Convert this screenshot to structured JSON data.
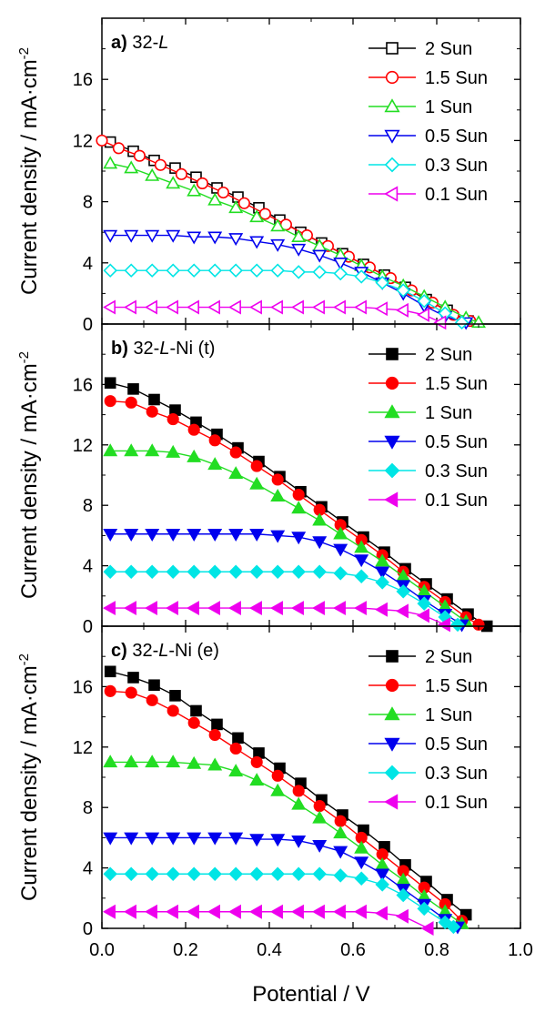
{
  "figure": {
    "xlabel": "Potential / V",
    "ylabel_main": "Current density / mA·cm",
    "ylabel_sup": "-2"
  },
  "colors": {
    "2 Sun": "#000000",
    "1.5 Sun": "#ff0000",
    "1 Sun": "#22dd22",
    "0.5 Sun": "#0000ee",
    "0.3 Sun": "#00e5e5",
    "0.1 Sun": "#ee00ee"
  },
  "chart_data": [
    {
      "type": "line",
      "panel_letter": "a)",
      "panel_name": "32-",
      "panel_italic": "L",
      "panel_suffix": "",
      "marker_fill": "open",
      "xlim": [
        0.0,
        1.0
      ],
      "ylim": [
        0,
        20
      ],
      "xticks": [
        "0.0",
        "0.2",
        "0.4",
        "0.6",
        "0.8",
        "1.0"
      ],
      "yticks": [
        "0",
        "4",
        "8",
        "12",
        "16"
      ],
      "legend_position": "top-right",
      "series": [
        {
          "name": "2 Sun",
          "marker": "square",
          "x": [
            0.02,
            0.075,
            0.125,
            0.175,
            0.225,
            0.275,
            0.325,
            0.375,
            0.425,
            0.475,
            0.525,
            0.575,
            0.625,
            0.675,
            0.725,
            0.775,
            0.825,
            0.875
          ],
          "y": [
            11.9,
            11.3,
            10.7,
            10.2,
            9.6,
            8.9,
            8.3,
            7.6,
            6.8,
            6.0,
            5.3,
            4.6,
            3.9,
            3.2,
            2.4,
            1.6,
            0.9,
            0.2
          ]
        },
        {
          "name": "1.5 Sun",
          "marker": "circle",
          "x": [
            0.0,
            0.04,
            0.09,
            0.14,
            0.19,
            0.24,
            0.29,
            0.34,
            0.39,
            0.44,
            0.49,
            0.54,
            0.59,
            0.64,
            0.69,
            0.74,
            0.79,
            0.84,
            0.88
          ],
          "y": [
            12.0,
            11.5,
            11.0,
            10.4,
            9.8,
            9.2,
            8.6,
            7.9,
            7.2,
            6.5,
            5.8,
            5.1,
            4.4,
            3.7,
            3.0,
            2.2,
            1.4,
            0.6,
            0.2
          ]
        },
        {
          "name": "1 Sun",
          "marker": "triangle-up",
          "x": [
            0.02,
            0.07,
            0.12,
            0.17,
            0.22,
            0.27,
            0.32,
            0.37,
            0.42,
            0.47,
            0.52,
            0.57,
            0.62,
            0.67,
            0.72,
            0.77,
            0.82,
            0.87,
            0.9
          ],
          "y": [
            10.5,
            10.2,
            9.7,
            9.2,
            8.7,
            8.1,
            7.6,
            7.0,
            6.4,
            5.7,
            5.1,
            4.5,
            3.8,
            3.1,
            2.5,
            1.8,
            1.1,
            0.4,
            0.1
          ]
        },
        {
          "name": "0.5 Sun",
          "marker": "triangle-down",
          "x": [
            0.02,
            0.07,
            0.12,
            0.17,
            0.22,
            0.27,
            0.32,
            0.37,
            0.42,
            0.47,
            0.52,
            0.57,
            0.62,
            0.67,
            0.72,
            0.77,
            0.82,
            0.87
          ],
          "y": [
            5.8,
            5.8,
            5.8,
            5.8,
            5.7,
            5.7,
            5.6,
            5.4,
            5.2,
            4.9,
            4.5,
            4.0,
            3.4,
            2.7,
            2.0,
            1.2,
            0.5,
            0.1
          ]
        },
        {
          "name": "0.3 Sun",
          "marker": "diamond",
          "x": [
            0.02,
            0.07,
            0.12,
            0.17,
            0.22,
            0.27,
            0.32,
            0.37,
            0.42,
            0.47,
            0.52,
            0.57,
            0.62,
            0.67,
            0.72,
            0.77,
            0.82,
            0.86
          ],
          "y": [
            3.5,
            3.5,
            3.5,
            3.5,
            3.5,
            3.5,
            3.5,
            3.5,
            3.5,
            3.4,
            3.4,
            3.3,
            3.1,
            2.7,
            2.2,
            1.5,
            0.7,
            0.1
          ]
        },
        {
          "name": "0.1 Sun",
          "marker": "triangle-left",
          "x": [
            0.02,
            0.07,
            0.12,
            0.17,
            0.22,
            0.27,
            0.32,
            0.37,
            0.42,
            0.47,
            0.52,
            0.57,
            0.62,
            0.67,
            0.72,
            0.77,
            0.81
          ],
          "y": [
            1.1,
            1.1,
            1.1,
            1.1,
            1.1,
            1.1,
            1.1,
            1.1,
            1.1,
            1.1,
            1.1,
            1.1,
            1.1,
            1.0,
            0.9,
            0.6,
            0.1
          ]
        }
      ]
    },
    {
      "type": "line",
      "panel_letter": "b)",
      "panel_name": "32-",
      "panel_italic": "L",
      "panel_suffix": "-Ni (t)",
      "marker_fill": "filled",
      "xlim": [
        0.0,
        1.0
      ],
      "ylim": [
        0,
        20
      ],
      "xticks": [
        "0.0",
        "0.2",
        "0.4",
        "0.6",
        "0.8",
        "1.0"
      ],
      "yticks": [
        "0",
        "4",
        "8",
        "12",
        "16"
      ],
      "legend_position": "top-right",
      "series": [
        {
          "name": "2 Sun",
          "marker": "square",
          "x": [
            0.02,
            0.075,
            0.125,
            0.175,
            0.225,
            0.275,
            0.325,
            0.375,
            0.425,
            0.475,
            0.525,
            0.575,
            0.625,
            0.675,
            0.725,
            0.775,
            0.825,
            0.875,
            0.92
          ],
          "y": [
            16.1,
            15.7,
            15.0,
            14.3,
            13.5,
            12.7,
            11.8,
            10.9,
            9.9,
            8.9,
            7.9,
            6.9,
            5.9,
            4.9,
            3.8,
            2.8,
            1.8,
            0.8,
            0.0
          ]
        },
        {
          "name": "1.5 Sun",
          "marker": "circle",
          "x": [
            0.02,
            0.07,
            0.12,
            0.17,
            0.22,
            0.27,
            0.32,
            0.37,
            0.42,
            0.47,
            0.52,
            0.57,
            0.62,
            0.67,
            0.72,
            0.77,
            0.82,
            0.87,
            0.9
          ],
          "y": [
            14.9,
            14.8,
            14.2,
            13.7,
            13.0,
            12.3,
            11.5,
            10.6,
            9.7,
            8.7,
            7.7,
            6.7,
            5.7,
            4.7,
            3.6,
            2.6,
            1.6,
            0.6,
            0.1
          ]
        },
        {
          "name": "1 Sun",
          "marker": "triangle-up",
          "x": [
            0.02,
            0.07,
            0.12,
            0.17,
            0.22,
            0.27,
            0.32,
            0.37,
            0.42,
            0.47,
            0.52,
            0.57,
            0.62,
            0.67,
            0.72,
            0.77,
            0.82,
            0.87
          ],
          "y": [
            11.6,
            11.6,
            11.6,
            11.5,
            11.2,
            10.7,
            10.1,
            9.4,
            8.6,
            7.8,
            7.0,
            6.1,
            5.2,
            4.3,
            3.3,
            2.3,
            1.3,
            0.3
          ]
        },
        {
          "name": "0.5 Sun",
          "marker": "triangle-down",
          "x": [
            0.02,
            0.07,
            0.12,
            0.17,
            0.22,
            0.27,
            0.32,
            0.37,
            0.42,
            0.47,
            0.52,
            0.57,
            0.62,
            0.67,
            0.72,
            0.77,
            0.82,
            0.86
          ],
          "y": [
            6.1,
            6.1,
            6.1,
            6.1,
            6.1,
            6.1,
            6.1,
            6.1,
            6.0,
            5.9,
            5.6,
            5.1,
            4.4,
            3.6,
            2.7,
            1.7,
            0.8,
            0.1
          ]
        },
        {
          "name": "0.3 Sun",
          "marker": "diamond",
          "x": [
            0.02,
            0.07,
            0.12,
            0.17,
            0.22,
            0.27,
            0.32,
            0.37,
            0.42,
            0.47,
            0.52,
            0.57,
            0.62,
            0.67,
            0.72,
            0.77,
            0.82,
            0.85
          ],
          "y": [
            3.6,
            3.6,
            3.6,
            3.6,
            3.6,
            3.6,
            3.6,
            3.6,
            3.6,
            3.6,
            3.6,
            3.5,
            3.3,
            2.9,
            2.3,
            1.5,
            0.6,
            0.1
          ]
        },
        {
          "name": "0.1 Sun",
          "marker": "triangle-left",
          "x": [
            0.02,
            0.07,
            0.12,
            0.17,
            0.22,
            0.27,
            0.32,
            0.37,
            0.42,
            0.47,
            0.52,
            0.57,
            0.62,
            0.67,
            0.72,
            0.77,
            0.82
          ],
          "y": [
            1.2,
            1.2,
            1.2,
            1.2,
            1.2,
            1.2,
            1.2,
            1.2,
            1.2,
            1.2,
            1.2,
            1.2,
            1.2,
            1.1,
            1.0,
            0.7,
            0.1
          ]
        }
      ]
    },
    {
      "type": "line",
      "panel_letter": "c)",
      "panel_name": "32-",
      "panel_italic": "L",
      "panel_suffix": "-Ni (e)",
      "marker_fill": "filled",
      "xlim": [
        0.0,
        1.0
      ],
      "ylim": [
        0,
        20
      ],
      "xticks": [
        "0.0",
        "0.2",
        "0.4",
        "0.6",
        "0.8",
        "1.0"
      ],
      "yticks": [
        "0",
        "4",
        "8",
        "12",
        "16"
      ],
      "legend_position": "top-right",
      "series": [
        {
          "name": "2 Sun",
          "marker": "square",
          "x": [
            0.02,
            0.075,
            0.125,
            0.175,
            0.225,
            0.275,
            0.325,
            0.375,
            0.425,
            0.475,
            0.525,
            0.575,
            0.625,
            0.675,
            0.725,
            0.775,
            0.825,
            0.87
          ],
          "y": [
            17.0,
            16.6,
            16.1,
            15.4,
            14.4,
            13.5,
            12.6,
            11.6,
            10.6,
            9.6,
            8.5,
            7.5,
            6.5,
            5.4,
            4.2,
            3.1,
            1.9,
            0.9
          ]
        },
        {
          "name": "1.5 Sun",
          "marker": "circle",
          "x": [
            0.02,
            0.07,
            0.12,
            0.17,
            0.22,
            0.27,
            0.32,
            0.37,
            0.42,
            0.47,
            0.52,
            0.57,
            0.62,
            0.67,
            0.72,
            0.77,
            0.82,
            0.86
          ],
          "y": [
            15.7,
            15.6,
            15.1,
            14.4,
            13.6,
            12.8,
            11.9,
            11.0,
            10.1,
            9.1,
            8.1,
            7.1,
            6.0,
            4.9,
            3.8,
            2.7,
            1.6,
            0.5
          ]
        },
        {
          "name": "1 Sun",
          "marker": "triangle-up",
          "x": [
            0.02,
            0.07,
            0.12,
            0.17,
            0.22,
            0.27,
            0.32,
            0.37,
            0.42,
            0.47,
            0.52,
            0.57,
            0.62,
            0.67,
            0.72,
            0.77,
            0.82,
            0.86
          ],
          "y": [
            11.0,
            11.0,
            11.0,
            11.0,
            10.9,
            10.8,
            10.4,
            9.8,
            9.1,
            8.2,
            7.3,
            6.3,
            5.3,
            4.2,
            3.2,
            2.1,
            1.1,
            0.3
          ]
        },
        {
          "name": "0.5 Sun",
          "marker": "triangle-down",
          "x": [
            0.02,
            0.07,
            0.12,
            0.17,
            0.22,
            0.27,
            0.32,
            0.37,
            0.42,
            0.47,
            0.52,
            0.57,
            0.62,
            0.67,
            0.72,
            0.77,
            0.82,
            0.85
          ],
          "y": [
            6.0,
            6.0,
            6.0,
            6.0,
            6.0,
            6.0,
            6.0,
            5.9,
            5.9,
            5.8,
            5.5,
            5.1,
            4.4,
            3.6,
            2.6,
            1.6,
            0.6,
            0.1
          ]
        },
        {
          "name": "0.3 Sun",
          "marker": "diamond",
          "x": [
            0.02,
            0.07,
            0.12,
            0.17,
            0.22,
            0.27,
            0.32,
            0.37,
            0.42,
            0.47,
            0.52,
            0.57,
            0.62,
            0.67,
            0.72,
            0.77,
            0.82,
            0.84
          ],
          "y": [
            3.6,
            3.6,
            3.6,
            3.6,
            3.6,
            3.6,
            3.6,
            3.6,
            3.6,
            3.6,
            3.6,
            3.5,
            3.3,
            2.9,
            2.2,
            1.3,
            0.4,
            0.1
          ]
        },
        {
          "name": "0.1 Sun",
          "marker": "triangle-left",
          "x": [
            0.02,
            0.07,
            0.12,
            0.17,
            0.22,
            0.27,
            0.32,
            0.37,
            0.42,
            0.47,
            0.52,
            0.57,
            0.62,
            0.67,
            0.72,
            0.78
          ],
          "y": [
            1.1,
            1.1,
            1.1,
            1.1,
            1.1,
            1.1,
            1.1,
            1.1,
            1.1,
            1.1,
            1.1,
            1.1,
            1.1,
            1.0,
            0.8,
            0.0
          ]
        }
      ]
    }
  ]
}
